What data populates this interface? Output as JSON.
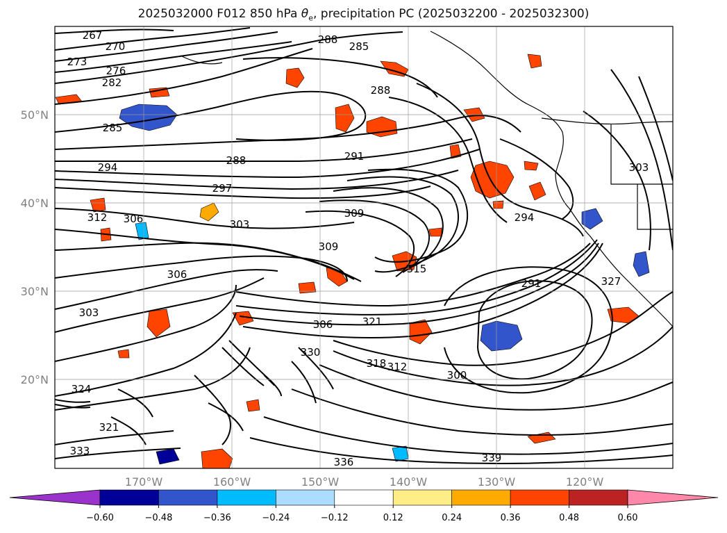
{
  "title_main": "2025032000 F012 850 hPa ",
  "title_theta": "θ",
  "title_sub": "e",
  "title_rest": ", precipitation PC (2025032200 - 2025032300)",
  "lat_labels": [
    "50°N",
    "40°N",
    "30°N",
    "20°N"
  ],
  "lon_labels": [
    "170°W",
    "160°W",
    "150°W",
    "140°W",
    "130°W",
    "120°W"
  ],
  "colorbar": {
    "ticks": [
      "−0.60",
      "−0.48",
      "−0.36",
      "−0.24",
      "−0.12",
      "0.12",
      "0.24",
      "0.36",
      "0.48",
      "0.60"
    ],
    "under_color": "#9933cc",
    "over_color": "#ff88aa",
    "colors": [
      "#000099",
      "#3355cc",
      "#00bbff",
      "#aaddff",
      "#ffffff",
      "#ffee88",
      "#ffaa00",
      "#ff4400",
      "#bb2222"
    ]
  },
  "contour_labels": [
    "267",
    "270",
    "273",
    "276",
    "282",
    "285",
    "288",
    "291",
    "294",
    "297",
    "300",
    "303",
    "306",
    "309",
    "312",
    "315",
    "318",
    "321",
    "324",
    "327",
    "330",
    "333",
    "336",
    "339"
  ],
  "placed_labels": [
    "267",
    "270",
    "273",
    "276",
    "282",
    "285",
    "288",
    "285",
    "288",
    "288",
    "291",
    "294",
    "297",
    "303",
    "309",
    "312",
    "306",
    "309",
    "315",
    "306",
    "303",
    "306",
    "321",
    "318",
    "312",
    "300",
    "291",
    "294",
    "303",
    "327",
    "324",
    "321",
    "330",
    "333",
    "336",
    "339"
  ]
}
